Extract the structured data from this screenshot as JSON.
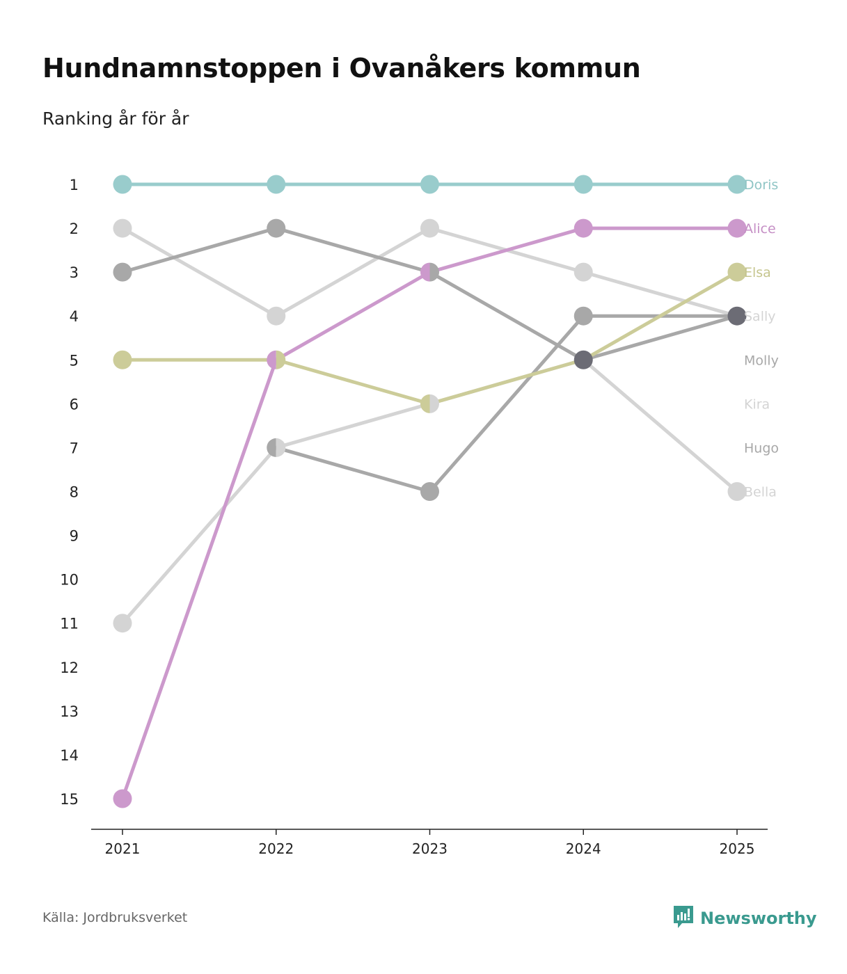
{
  "title": "Hundnamnstoppen i Ovanåkers kommun",
  "subtitle": "Ranking år för år",
  "source": "Källa: Jordbruksverket",
  "brand": {
    "name": "Newsworthy",
    "icon": "newsworthy-logo-icon",
    "color": "#3a9a8f"
  },
  "chart_data": {
    "type": "line",
    "subtype": "bump",
    "title": "Hundnamnstoppen i Ovanåkers kommun",
    "subtitle": "Ranking år för år",
    "xlabel": "",
    "ylabel": "",
    "x": [
      "2021",
      "2022",
      "2023",
      "2024",
      "2025"
    ],
    "y_ticks": [
      "1",
      "2",
      "3",
      "4",
      "5",
      "6",
      "7",
      "8",
      "9",
      "10",
      "11",
      "12",
      "13",
      "14",
      "15"
    ],
    "ylim": [
      1,
      15
    ],
    "y_inverted": true,
    "grid": false,
    "series": [
      {
        "name": "Bella",
        "color": "#d4d4d4",
        "label_color": "#d4d4d4",
        "values": [
          11,
          7,
          6,
          5,
          8
        ]
      },
      {
        "name": "Kira",
        "color": "#d4d4d4",
        "label_color": "#d4d4d4",
        "values": [
          2,
          4,
          2,
          3,
          4
        ]
      },
      {
        "name": "Hugo",
        "color": "#a8a8a8",
        "label_color": "#a8a8a8",
        "values": [
          null,
          7,
          8,
          4,
          4
        ]
      },
      {
        "name": "Molly",
        "color": "#a8a8a8",
        "label_color": "#a8a8a8",
        "values": [
          3,
          2,
          3,
          5,
          4
        ]
      },
      {
        "name": "Sally",
        "color": "#d4d4d4",
        "label_color": "#d4d4d4",
        "values": [
          null,
          null,
          null,
          null,
          4
        ]
      },
      {
        "name": "Elsa",
        "color": "#cccc99",
        "label_color": "#c5c58e",
        "values": [
          5,
          5,
          6,
          5,
          3
        ]
      },
      {
        "name": "Alice",
        "color": "#cc99cc",
        "label_color": "#c58fc5",
        "values": [
          15,
          5,
          3,
          2,
          2
        ]
      },
      {
        "name": "Doris",
        "color": "#99cccc",
        "label_color": "#8fc5c5",
        "values": [
          1,
          1,
          1,
          1,
          1
        ]
      }
    ],
    "label_order": [
      "Doris",
      "Alice",
      "Elsa",
      "Sally",
      "Molly",
      "Kira",
      "Hugo",
      "Bella"
    ],
    "overlap_marker_color": "#6c6c75"
  }
}
